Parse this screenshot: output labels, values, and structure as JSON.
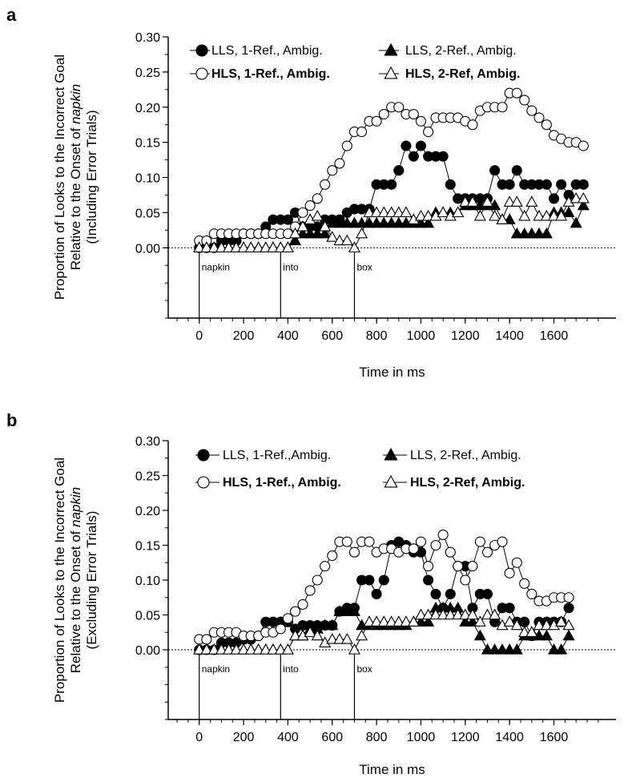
{
  "chart_data": [
    {
      "panel_label": "a",
      "type": "line",
      "xlabel": "Time in ms",
      "ylabel_lines": [
        "Proportion of Looks to the Incorrect Goal",
        "Relative to the Onset of napkin",
        "(Including Error Trials)"
      ],
      "ylabel_italic_word": "napkin",
      "ylim": [
        -0.1,
        0.3
      ],
      "xlim": [
        -140,
        1880
      ],
      "yticks": [
        "0.00",
        "0.05",
        "0.10",
        "0.15",
        "0.20",
        "0.25",
        "0.30"
      ],
      "xticks": [
        "0",
        "200",
        "400",
        "600",
        "800",
        "1000",
        "1200",
        "1400",
        "1600"
      ],
      "word_regions": [
        {
          "label": "napkin",
          "start": 0
        },
        {
          "label": "into",
          "start": 367
        },
        {
          "label": "box",
          "start": 700
        }
      ],
      "legend": [
        {
          "label": "LLS, 1-Ref., Ambig.",
          "marker": "circle-filled"
        },
        {
          "label": "LLS, 2-Ref., Ambig.",
          "marker": "triangle-filled"
        },
        {
          "label": "HLS, 1-Ref., Ambig.",
          "marker": "circle-open"
        },
        {
          "label": "HLS, 2-Ref, Ambig.",
          "marker": "triangle-open"
        }
      ],
      "series": [
        {
          "name": "LLS, 1-Ref., Ambig.",
          "marker": "circle-filled",
          "x": [
            0,
            33,
            67,
            100,
            133,
            167,
            200,
            233,
            267,
            300,
            333,
            367,
            400,
            433,
            467,
            500,
            533,
            567,
            600,
            633,
            667,
            700,
            733,
            767,
            800,
            833,
            867,
            900,
            933,
            967,
            1000,
            1033,
            1067,
            1100,
            1133,
            1167,
            1200,
            1233,
            1267,
            1300,
            1333,
            1367,
            1400,
            1433,
            1467,
            1500,
            1533,
            1567,
            1600,
            1633,
            1667,
            1700,
            1733
          ],
          "y": [
            0,
            0,
            0,
            0.01,
            0.01,
            0.01,
            0.02,
            0.02,
            0.02,
            0.03,
            0.04,
            0.04,
            0.04,
            0.05,
            0.03,
            0.03,
            0.03,
            0.04,
            0.04,
            0.04,
            0.05,
            0.055,
            0.055,
            0.055,
            0.09,
            0.09,
            0.09,
            0.11,
            0.145,
            0.13,
            0.145,
            0.13,
            0.13,
            0.13,
            0.09,
            0.07,
            0.07,
            0.07,
            0.07,
            0.07,
            0.11,
            0.09,
            0.09,
            0.11,
            0.09,
            0.09,
            0.09,
            0.09,
            0.07,
            0.09,
            0.075,
            0.09,
            0.09
          ]
        },
        {
          "name": "HLS, 1-Ref., Ambig.",
          "marker": "circle-open",
          "x": [
            0,
            33,
            67,
            100,
            133,
            167,
            200,
            233,
            267,
            300,
            333,
            367,
            400,
            433,
            467,
            500,
            533,
            567,
            600,
            633,
            667,
            700,
            733,
            767,
            800,
            833,
            867,
            900,
            933,
            967,
            1000,
            1033,
            1067,
            1100,
            1133,
            1167,
            1200,
            1233,
            1267,
            1300,
            1333,
            1367,
            1400,
            1433,
            1467,
            1500,
            1533,
            1567,
            1600,
            1633,
            1667,
            1700,
            1733
          ],
          "y": [
            0.01,
            0.01,
            0.02,
            0.02,
            0.02,
            0.02,
            0.02,
            0.02,
            0.02,
            0.02,
            0.02,
            0.02,
            0.02,
            0.03,
            0.05,
            0.06,
            0.07,
            0.09,
            0.11,
            0.12,
            0.145,
            0.165,
            0.165,
            0.18,
            0.18,
            0.19,
            0.2,
            0.2,
            0.19,
            0.19,
            0.18,
            0.165,
            0.185,
            0.185,
            0.185,
            0.185,
            0.18,
            0.175,
            0.195,
            0.2,
            0.2,
            0.2,
            0.22,
            0.22,
            0.21,
            0.195,
            0.185,
            0.175,
            0.16,
            0.155,
            0.15,
            0.15,
            0.145
          ]
        },
        {
          "name": "LLS, 2-Ref., Ambig.",
          "marker": "triangle-filled",
          "x": [
            0,
            33,
            67,
            100,
            133,
            167,
            200,
            233,
            267,
            300,
            333,
            367,
            400,
            433,
            467,
            500,
            533,
            567,
            600,
            633,
            667,
            700,
            733,
            767,
            800,
            833,
            867,
            900,
            933,
            967,
            1000,
            1033,
            1067,
            1100,
            1133,
            1167,
            1200,
            1233,
            1267,
            1300,
            1333,
            1367,
            1400,
            1433,
            1467,
            1500,
            1533,
            1567,
            1600,
            1633,
            1667,
            1700,
            1733
          ],
          "y": [
            0,
            0,
            0,
            0,
            0,
            0,
            0,
            0,
            0,
            0,
            0,
            0,
            0,
            0.01,
            0.02,
            0.02,
            0.02,
            0.02,
            0.035,
            0.035,
            0.035,
            0.035,
            0.035,
            0.035,
            0.035,
            0.035,
            0.035,
            0.035,
            0.035,
            0.035,
            0.035,
            0.035,
            0.05,
            0.05,
            0.05,
            0.05,
            0.06,
            0.06,
            0.06,
            0.06,
            0.06,
            0.04,
            0.04,
            0.02,
            0.02,
            0.02,
            0.02,
            0.02,
            0.05,
            0.05,
            0.05,
            0.035,
            0.06
          ]
        },
        {
          "name": "HLS, 2-Ref, Ambig.",
          "marker": "triangle-open",
          "x": [
            0,
            33,
            67,
            100,
            133,
            167,
            200,
            233,
            267,
            300,
            333,
            367,
            400,
            433,
            467,
            500,
            533,
            567,
            600,
            633,
            667,
            700,
            733,
            767,
            800,
            833,
            867,
            900,
            933,
            967,
            1000,
            1033,
            1067,
            1100,
            1133,
            1167,
            1200,
            1233,
            1267,
            1300,
            1333,
            1367,
            1400,
            1433,
            1467,
            1500,
            1533,
            1567,
            1600,
            1633,
            1667,
            1700,
            1733
          ],
          "y": [
            0,
            0,
            0,
            0,
            0,
            0,
            0,
            0,
            0,
            0,
            0,
            0,
            0,
            0.02,
            0.03,
            0.04,
            0.045,
            0.03,
            0.015,
            0.01,
            0.01,
            0,
            0.02,
            0.05,
            0.05,
            0.05,
            0.05,
            0.05,
            0.05,
            0.04,
            0.045,
            0.045,
            0.045,
            0.05,
            0.045,
            0.05,
            0.065,
            0.065,
            0.045,
            0.065,
            0.045,
            0.04,
            0.065,
            0.065,
            0.045,
            0.065,
            0.045,
            0.045,
            0.045,
            0.045,
            0.065,
            0.07,
            0.07
          ]
        }
      ]
    },
    {
      "panel_label": "b",
      "type": "line",
      "xlabel": "Time in ms",
      "ylabel_lines": [
        "Proportion of Looks to the Incorrect Goal",
        "Relative to the Onset of napkin",
        "(Excluding Error Trials)"
      ],
      "ylabel_italic_word": "napkin",
      "ylim": [
        -0.1,
        0.3
      ],
      "xlim": [
        -140,
        1880
      ],
      "yticks": [
        "0.00",
        "0.05",
        "0.10",
        "0.15",
        "0.20",
        "0.25",
        "0.30"
      ],
      "xticks": [
        "0",
        "200",
        "400",
        "600",
        "800",
        "1000",
        "1200",
        "1400",
        "1600"
      ],
      "word_regions": [
        {
          "label": "napkin",
          "start": 0
        },
        {
          "label": "into",
          "start": 367
        },
        {
          "label": "box",
          "start": 700
        }
      ],
      "legend": [
        {
          "label": "LLS, 1-Ref.,Ambig.",
          "marker": "circle-filled"
        },
        {
          "label": "LLS, 2-Ref., Ambig.",
          "marker": "triangle-filled"
        },
        {
          "label": "HLS, 1-Ref., Ambig.",
          "marker": "circle-open"
        },
        {
          "label": "HLS, 2-Ref, Ambig.",
          "marker": "triangle-open"
        }
      ],
      "series": [
        {
          "name": "LLS, 1-Ref.,Ambig.",
          "marker": "circle-filled",
          "x": [
            0,
            33,
            67,
            100,
            133,
            167,
            200,
            233,
            267,
            300,
            333,
            367,
            400,
            433,
            467,
            500,
            533,
            567,
            600,
            633,
            667,
            700,
            733,
            767,
            800,
            833,
            867,
            900,
            933,
            967,
            1000,
            1033,
            1067,
            1100,
            1133,
            1167,
            1200,
            1233,
            1267,
            1300,
            1333,
            1367,
            1400,
            1433,
            1467,
            1500,
            1533,
            1567,
            1600,
            1633,
            1667
          ],
          "y": [
            0,
            0,
            0,
            0.01,
            0.01,
            0.01,
            0.015,
            0.015,
            0.02,
            0.04,
            0.04,
            0.04,
            0.04,
            0.03,
            0.035,
            0.035,
            0.035,
            0.035,
            0.035,
            0.055,
            0.06,
            0.06,
            0.1,
            0.1,
            0.08,
            0.1,
            0.15,
            0.155,
            0.15,
            0.14,
            0.14,
            0.1,
            0.08,
            0.06,
            0.08,
            0.12,
            0.12,
            0.06,
            0.08,
            0.08,
            0.04,
            0.06,
            0.06,
            0.04,
            0.04,
            0.02,
            0.04,
            0.04,
            0.04,
            0.04,
            0.06
          ]
        },
        {
          "name": "HLS, 1-Ref., Ambig.",
          "marker": "circle-open",
          "x": [
            0,
            33,
            67,
            100,
            133,
            167,
            200,
            233,
            267,
            300,
            333,
            367,
            400,
            433,
            467,
            500,
            533,
            567,
            600,
            633,
            667,
            700,
            733,
            767,
            800,
            833,
            867,
            900,
            933,
            967,
            1000,
            1033,
            1067,
            1100,
            1133,
            1167,
            1200,
            1233,
            1267,
            1300,
            1333,
            1367,
            1400,
            1433,
            1467,
            1500,
            1533,
            1567,
            1600,
            1633,
            1667
          ],
          "y": [
            0.015,
            0.015,
            0.025,
            0.025,
            0.025,
            0.025,
            0.02,
            0.02,
            0.02,
            0.025,
            0.025,
            0.03,
            0.045,
            0.055,
            0.065,
            0.085,
            0.1,
            0.12,
            0.135,
            0.155,
            0.155,
            0.14,
            0.155,
            0.155,
            0.14,
            0.145,
            0.145,
            0.14,
            0.145,
            0.145,
            0.155,
            0.12,
            0.15,
            0.165,
            0.14,
            0.12,
            0.1,
            0.12,
            0.155,
            0.14,
            0.15,
            0.155,
            0.11,
            0.125,
            0.095,
            0.08,
            0.07,
            0.07,
            0.075,
            0.075,
            0.075
          ]
        },
        {
          "name": "LLS, 2-Ref., Ambig.",
          "marker": "triangle-filled",
          "x": [
            0,
            33,
            67,
            100,
            133,
            167,
            200,
            233,
            267,
            300,
            333,
            367,
            400,
            433,
            467,
            500,
            533,
            567,
            600,
            633,
            667,
            700,
            733,
            767,
            800,
            833,
            867,
            900,
            933,
            967,
            1000,
            1033,
            1067,
            1100,
            1133,
            1167,
            1200,
            1233,
            1267,
            1300,
            1333,
            1367,
            1400,
            1433,
            1467,
            1500,
            1533,
            1567,
            1600,
            1633,
            1667
          ],
          "y": [
            0,
            0,
            0,
            0,
            0,
            0,
            0,
            0,
            0,
            0,
            0,
            0,
            0,
            0.02,
            0.02,
            0.03,
            0.03,
            0.035,
            0.035,
            0.055,
            0.055,
            0.055,
            0.035,
            0.035,
            0.035,
            0.035,
            0.035,
            0.035,
            0.035,
            0.04,
            0.04,
            0.04,
            0.06,
            0.06,
            0.06,
            0.06,
            0.04,
            0.04,
            0.02,
            0,
            0,
            0,
            0,
            0,
            0.02,
            0.02,
            0.02,
            0.02,
            0,
            0,
            0.02
          ]
        },
        {
          "name": "HLS, 2-Ref, Ambig.",
          "marker": "triangle-open",
          "x": [
            0,
            33,
            67,
            100,
            133,
            167,
            200,
            233,
            267,
            300,
            333,
            367,
            400,
            433,
            467,
            500,
            533,
            567,
            600,
            633,
            667,
            700,
            733,
            767,
            800,
            833,
            867,
            900,
            933,
            967,
            1000,
            1033,
            1067,
            1100,
            1133,
            1167,
            1200,
            1233,
            1267,
            1300,
            1333,
            1367,
            1400,
            1433,
            1467,
            1500,
            1533,
            1567,
            1600,
            1633,
            1667
          ],
          "y": [
            0,
            0,
            0,
            0,
            0,
            0,
            0,
            0,
            0,
            0,
            0,
            0,
            0,
            0.02,
            0.02,
            0.025,
            0.02,
            0.01,
            0.015,
            0.015,
            0.015,
            0,
            0.02,
            0.04,
            0.04,
            0.04,
            0.04,
            0.04,
            0.04,
            0.04,
            0.05,
            0.05,
            0.05,
            0.05,
            0.05,
            0.05,
            0.05,
            0.05,
            0.04,
            0.05,
            0.05,
            0.035,
            0.04,
            0.035,
            0.025,
            0.025,
            0.035,
            0.035,
            0.035,
            0.04,
            0.035
          ]
        }
      ]
    }
  ]
}
